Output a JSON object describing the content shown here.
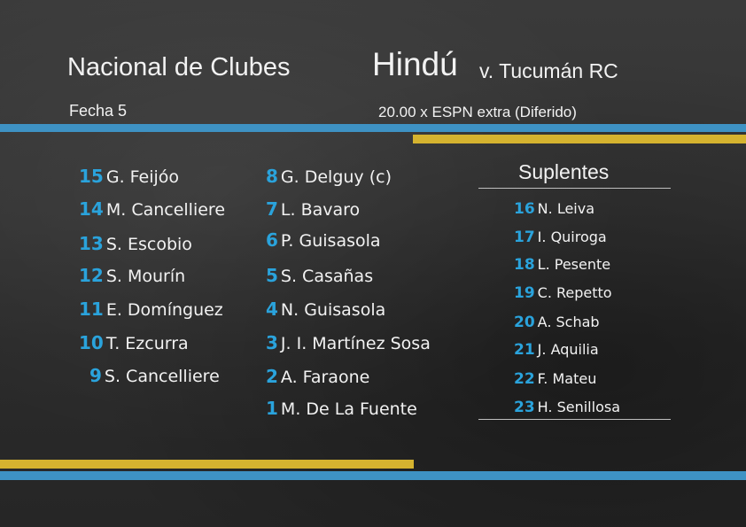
{
  "header": {
    "competition": "Nacional de Clubes",
    "round": "Fecha 5",
    "home_team": "Hindú",
    "versus": "v. Tucumán RC",
    "broadcast": "20.00 x ESPN extra (Diferido)"
  },
  "starters_col1": [
    {
      "number": "15",
      "name": "G. Feijóo"
    },
    {
      "number": "14",
      "name": "M. Cancelliere"
    },
    {
      "number": "13",
      "name": "S. Escobio"
    },
    {
      "number": "12",
      "name": "S. Mourín"
    },
    {
      "number": "11",
      "name": "E. Domínguez"
    },
    {
      "number": "10",
      "name": "T. Ezcurra"
    },
    {
      "number": "9",
      "name": "S. Cancelliere"
    }
  ],
  "starters_col2": [
    {
      "number": "8",
      "name": "G. Delguy (c)"
    },
    {
      "number": "7",
      "name": "L. Bavaro"
    },
    {
      "number": "6",
      "name": "P. Guisasola"
    },
    {
      "number": "5",
      "name": "S. Casañas"
    },
    {
      "number": "4",
      "name": "N. Guisasola"
    },
    {
      "number": "3",
      "name": "J. I. Martínez Sosa"
    },
    {
      "number": "2",
      "name": "A. Faraone"
    },
    {
      "number": "1",
      "name": "M. De La Fuente"
    }
  ],
  "substitutes": {
    "title": "Suplentes",
    "players": [
      {
        "number": "16",
        "name": "N. Leiva"
      },
      {
        "number": "17",
        "name": "I. Quiroga"
      },
      {
        "number": "18",
        "name": "L. Pesente"
      },
      {
        "number": "19",
        "name": "C. Repetto"
      },
      {
        "number": "20",
        "name": "A. Schab"
      },
      {
        "number": "21",
        "name": "J. Aquilia"
      },
      {
        "number": "22",
        "name": "F. Mateu"
      },
      {
        "number": "23",
        "name": "H. Senillosa"
      }
    ]
  },
  "colors": {
    "number_blue": "#2aa3dc",
    "stripe_blue": "#3e92c4",
    "stripe_yellow": "#d5b32f"
  }
}
